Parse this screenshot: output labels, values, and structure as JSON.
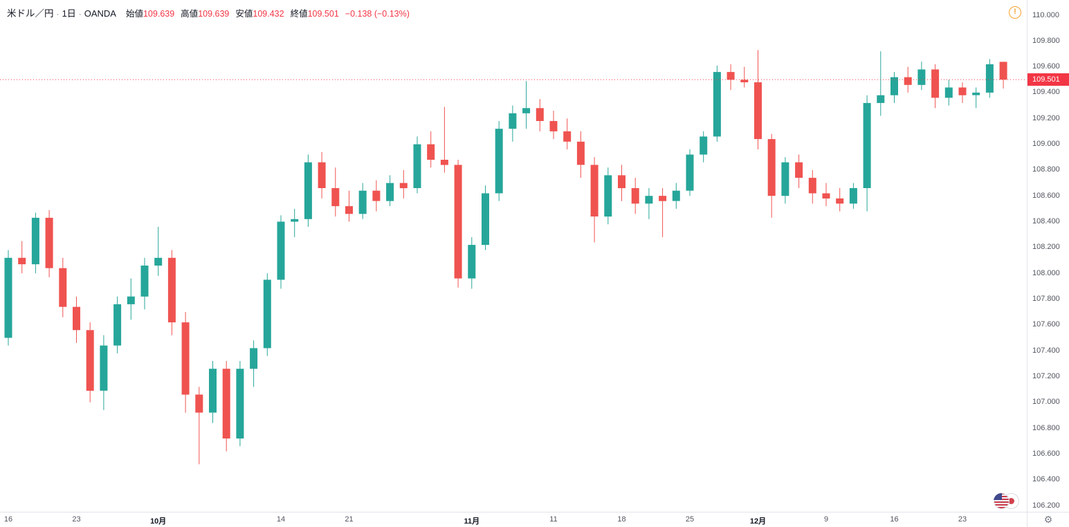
{
  "header": {
    "symbol": "米ドル／円",
    "separator": "·",
    "interval": "1日",
    "exchange": "OANDA",
    "ohlc": {
      "open_label": "始値",
      "open": "109.639",
      "high_label": "高値",
      "high": "109.639",
      "low_label": "安値",
      "low": "109.432",
      "close_label": "終値",
      "close": "109.501",
      "change": "−0.138 (−0.13%)"
    }
  },
  "warning_icon": {
    "glyph": "!"
  },
  "footer": {
    "gear_glyph": "⚙"
  },
  "last_price": {
    "value": "109.501",
    "price": 109.501
  },
  "colors": {
    "up": "#26a69a",
    "down": "#ef5350",
    "last_price_line": "#f23645",
    "axis_text": "#51555e",
    "divider": "#e0e3eb"
  },
  "price_axis": {
    "labels": [
      "110.000",
      "109.800",
      "109.600",
      "109.400",
      "109.200",
      "109.000",
      "108.800",
      "108.600",
      "108.400",
      "108.200",
      "108.000",
      "107.800",
      "107.600",
      "107.400",
      "107.200",
      "107.000",
      "106.800",
      "106.600",
      "106.400",
      "106.200"
    ]
  },
  "time_axis": {
    "labels": [
      {
        "text": "16",
        "index": 0
      },
      {
        "text": "23",
        "index": 5
      },
      {
        "text": "10月",
        "index": 11
      },
      {
        "text": "14",
        "index": 20
      },
      {
        "text": "21",
        "index": 25
      },
      {
        "text": "11月",
        "index": 34
      },
      {
        "text": "11",
        "index": 40
      },
      {
        "text": "18",
        "index": 45
      },
      {
        "text": "25",
        "index": 50
      },
      {
        "text": "12月",
        "index": 55
      },
      {
        "text": "9",
        "index": 60
      },
      {
        "text": "16",
        "index": 65
      },
      {
        "text": "23",
        "index": 70
      }
    ]
  },
  "chart_data": {
    "type": "candlestick",
    "title": "米ドル／円 1日 OANDA",
    "ylabel": "JPY per USD",
    "ylim": [
      106.2,
      110.0
    ],
    "y_tick_step": 0.2,
    "grid": false,
    "up_color": "#26a69a",
    "down_color": "#ef5350",
    "last_price": 109.501,
    "columns": [
      "date",
      "open",
      "high",
      "low",
      "close"
    ],
    "ohlc": [
      [
        "9/16",
        107.5,
        108.18,
        107.44,
        108.12
      ],
      [
        "9/17",
        108.12,
        108.25,
        108.0,
        108.07
      ],
      [
        "9/18",
        108.07,
        108.47,
        108.0,
        108.43
      ],
      [
        "9/19",
        108.43,
        108.49,
        107.97,
        108.04
      ],
      [
        "9/20",
        108.04,
        108.12,
        107.66,
        107.74
      ],
      [
        "9/23",
        107.74,
        107.82,
        107.46,
        107.56
      ],
      [
        "9/24",
        107.56,
        107.62,
        107.0,
        107.09
      ],
      [
        "9/25",
        107.09,
        107.52,
        106.94,
        107.44
      ],
      [
        "9/26",
        107.44,
        107.82,
        107.38,
        107.76
      ],
      [
        "9/27",
        107.76,
        107.96,
        107.64,
        107.82
      ],
      [
        "9/30",
        107.82,
        108.12,
        107.72,
        108.06
      ],
      [
        "10/1",
        108.06,
        108.36,
        107.98,
        108.12
      ],
      [
        "10/2",
        108.12,
        108.18,
        107.52,
        107.62
      ],
      [
        "10/3",
        107.62,
        107.7,
        106.92,
        107.06
      ],
      [
        "10/4",
        107.06,
        107.12,
        106.52,
        106.92
      ],
      [
        "10/7",
        106.92,
        107.32,
        106.84,
        107.26
      ],
      [
        "10/8",
        107.26,
        107.32,
        106.62,
        106.72
      ],
      [
        "10/9",
        106.72,
        107.32,
        106.66,
        107.26
      ],
      [
        "10/10",
        107.26,
        107.48,
        107.12,
        107.42
      ],
      [
        "10/11",
        107.42,
        108.0,
        107.36,
        107.95
      ],
      [
        "10/14",
        107.95,
        108.45,
        107.88,
        108.4
      ],
      [
        "10/15",
        108.4,
        108.5,
        108.28,
        108.42
      ],
      [
        "10/16",
        108.42,
        108.92,
        108.36,
        108.86
      ],
      [
        "10/17",
        108.86,
        108.94,
        108.58,
        108.66
      ],
      [
        "10/18",
        108.66,
        108.82,
        108.44,
        108.52
      ],
      [
        "10/21",
        108.52,
        108.64,
        108.4,
        108.46
      ],
      [
        "10/22",
        108.46,
        108.7,
        108.42,
        108.64
      ],
      [
        "10/23",
        108.64,
        108.72,
        108.48,
        108.56
      ],
      [
        "10/24",
        108.56,
        108.76,
        108.52,
        108.7
      ],
      [
        "10/25",
        108.7,
        108.8,
        108.58,
        108.66
      ],
      [
        "10/28",
        108.66,
        109.06,
        108.62,
        109.0
      ],
      [
        "10/29",
        109.0,
        109.1,
        108.82,
        108.88
      ],
      [
        "10/30",
        108.88,
        109.29,
        108.78,
        108.84
      ],
      [
        "10/31",
        108.84,
        108.88,
        107.89,
        107.96
      ],
      [
        "11/1",
        107.96,
        108.28,
        107.88,
        108.22
      ],
      [
        "11/4",
        108.22,
        108.68,
        108.18,
        108.62
      ],
      [
        "11/5",
        108.62,
        109.18,
        108.56,
        109.12
      ],
      [
        "11/6",
        109.12,
        109.3,
        109.02,
        109.24
      ],
      [
        "11/7",
        109.24,
        109.49,
        109.12,
        109.28
      ],
      [
        "11/8",
        109.28,
        109.35,
        109.1,
        109.18
      ],
      [
        "11/11",
        109.18,
        109.26,
        109.04,
        109.1
      ],
      [
        "11/12",
        109.1,
        109.2,
        108.96,
        109.02
      ],
      [
        "11/13",
        109.02,
        109.1,
        108.74,
        108.84
      ],
      [
        "11/14",
        108.84,
        108.9,
        108.24,
        108.44
      ],
      [
        "11/15",
        108.44,
        108.82,
        108.38,
        108.76
      ],
      [
        "11/18",
        108.76,
        108.84,
        108.56,
        108.66
      ],
      [
        "11/19",
        108.66,
        108.74,
        108.46,
        108.54
      ],
      [
        "11/20",
        108.54,
        108.66,
        108.42,
        108.6
      ],
      [
        "11/21",
        108.6,
        108.66,
        108.28,
        108.56
      ],
      [
        "11/22",
        108.56,
        108.7,
        108.5,
        108.64
      ],
      [
        "11/25",
        108.64,
        108.96,
        108.6,
        108.92
      ],
      [
        "11/26",
        108.92,
        109.1,
        108.86,
        109.06
      ],
      [
        "11/27",
        109.06,
        109.61,
        109.02,
        109.56
      ],
      [
        "11/28",
        109.56,
        109.62,
        109.42,
        109.5
      ],
      [
        "11/29",
        109.5,
        109.6,
        109.44,
        109.48
      ],
      [
        "12/2",
        109.48,
        109.73,
        108.96,
        109.04
      ],
      [
        "12/3",
        109.04,
        109.08,
        108.43,
        108.6
      ],
      [
        "12/4",
        108.6,
        108.9,
        108.54,
        108.86
      ],
      [
        "12/5",
        108.86,
        108.92,
        108.66,
        108.74
      ],
      [
        "12/6",
        108.74,
        108.8,
        108.54,
        108.62
      ],
      [
        "12/9",
        108.62,
        108.7,
        108.52,
        108.58
      ],
      [
        "12/10",
        108.58,
        108.66,
        108.48,
        108.54
      ],
      [
        "12/11",
        108.54,
        108.7,
        108.5,
        108.66
      ],
      [
        "12/12",
        108.66,
        109.38,
        108.48,
        109.32
      ],
      [
        "12/13",
        109.32,
        109.72,
        109.22,
        109.38
      ],
      [
        "12/16",
        109.38,
        109.56,
        109.32,
        109.52
      ],
      [
        "12/17",
        109.52,
        109.6,
        109.4,
        109.46
      ],
      [
        "12/18",
        109.46,
        109.64,
        109.42,
        109.58
      ],
      [
        "12/19",
        109.58,
        109.62,
        109.28,
        109.36
      ],
      [
        "12/20",
        109.36,
        109.5,
        109.3,
        109.44
      ],
      [
        "12/23",
        109.44,
        109.48,
        109.32,
        109.38
      ],
      [
        "12/24",
        109.38,
        109.44,
        109.28,
        109.4
      ],
      [
        "12/25",
        109.4,
        109.66,
        109.36,
        109.62
      ],
      [
        "12/26",
        109.639,
        109.639,
        109.432,
        109.501
      ]
    ]
  }
}
